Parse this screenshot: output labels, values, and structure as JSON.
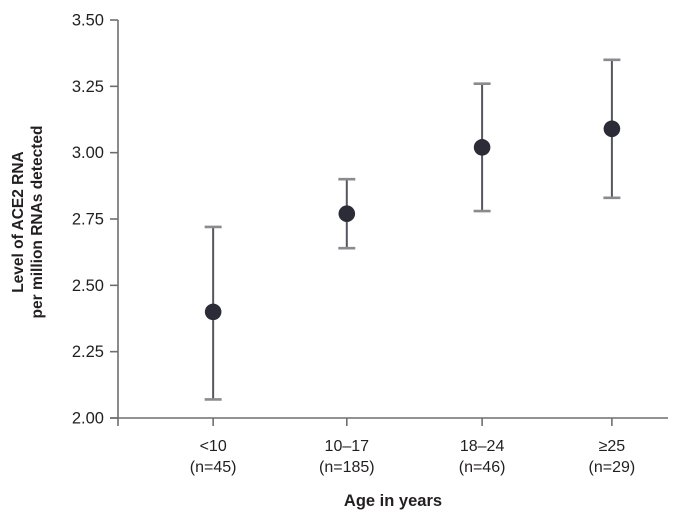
{
  "chart_data": {
    "type": "scatter",
    "title": "",
    "xlabel": "Age in years",
    "ylabel_line1": "Level of ACE2 RNA",
    "ylabel_line2": "per million RNAs detected",
    "categories": [
      "<10",
      "10–17",
      "18–24",
      "≥25"
    ],
    "category_sublabels": [
      "(n=45)",
      "(n=185)",
      "(n=46)",
      "(n=29)"
    ],
    "n_values": [
      45,
      185,
      46,
      29
    ],
    "means": [
      2.4,
      2.77,
      3.02,
      3.09
    ],
    "ci_low": [
      2.07,
      2.64,
      2.78,
      2.83
    ],
    "ci_high": [
      2.72,
      2.9,
      3.26,
      3.35
    ],
    "ylim": [
      2.0,
      3.5
    ],
    "ytick_step": 0.25,
    "ytick_labels": [
      "2.00",
      "2.25",
      "2.50",
      "2.75",
      "3.00",
      "3.25",
      "3.50"
    ],
    "grid": false,
    "legend": "none",
    "colors": {
      "point": "#2b2c37",
      "errorbar_line": "#55565f",
      "errorbar_cap": "#8a8b8e",
      "axis": "#6d6e71",
      "text": "#231f20"
    }
  }
}
